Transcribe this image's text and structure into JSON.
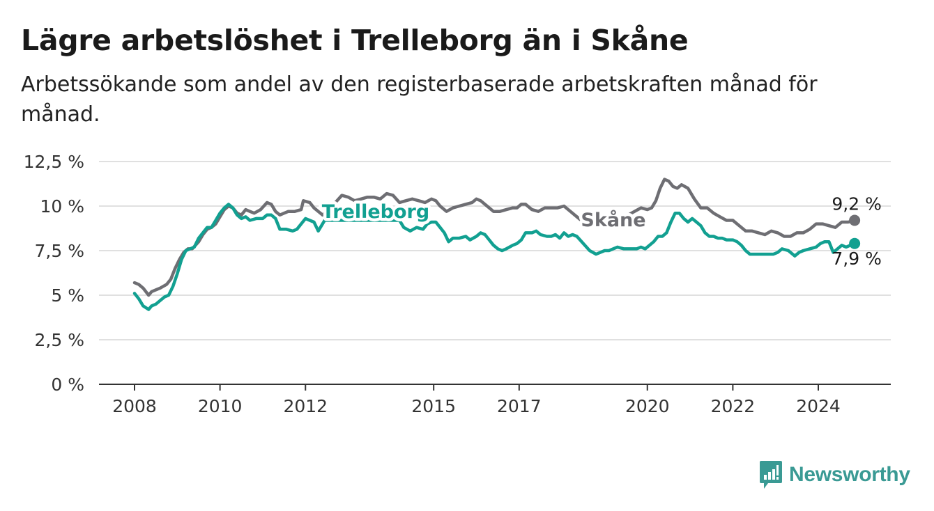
{
  "title": "Lägre arbetslöshet i Trelleborg än i Skåne",
  "subtitle": "Arbetssökande som andel av den registerbaserade arbetskraften månad för månad.",
  "brand": {
    "name": "Newsworthy",
    "color": "#3a9a94"
  },
  "chart_data": {
    "type": "line",
    "grid": true,
    "ylim": [
      0,
      12.5
    ],
    "yticks": [
      {
        "value": 0,
        "label": "0 %"
      },
      {
        "value": 2.5,
        "label": "2,5 %"
      },
      {
        "value": 5,
        "label": "5 %"
      },
      {
        "value": 7.5,
        "label": "7,5 %"
      },
      {
        "value": 10,
        "label": "10 %"
      },
      {
        "value": 12.5,
        "label": "12,5 %"
      }
    ],
    "xlim": [
      2007.5,
      2026.5
    ],
    "xticks": [
      {
        "value": 2008,
        "label": "2008"
      },
      {
        "value": 2010,
        "label": "2010"
      },
      {
        "value": 2012,
        "label": "2012"
      },
      {
        "value": 2015,
        "label": "2015"
      },
      {
        "value": 2017,
        "label": "2017"
      },
      {
        "value": 2020,
        "label": "2020"
      },
      {
        "value": 2022,
        "label": "2022"
      },
      {
        "value": 2024,
        "label": "2024"
      }
    ],
    "series": [
      {
        "name": "Skåne",
        "color": "#6e6e73",
        "end_label": "9,2 %",
        "points": [
          [
            2008.0,
            5.7
          ],
          [
            2008.1,
            5.6
          ],
          [
            2008.2,
            5.4
          ],
          [
            2008.33,
            5.0
          ],
          [
            2008.4,
            5.2
          ],
          [
            2008.5,
            5.3
          ],
          [
            2008.6,
            5.4
          ],
          [
            2008.75,
            5.6
          ],
          [
            2008.85,
            5.9
          ],
          [
            2008.95,
            6.5
          ],
          [
            2009.05,
            7.0
          ],
          [
            2009.15,
            7.4
          ],
          [
            2009.25,
            7.6
          ],
          [
            2009.35,
            7.6
          ],
          [
            2009.5,
            8.0
          ],
          [
            2009.6,
            8.4
          ],
          [
            2009.7,
            8.7
          ],
          [
            2009.8,
            8.8
          ],
          [
            2009.9,
            9.0
          ],
          [
            2010.0,
            9.4
          ],
          [
            2010.1,
            9.8
          ],
          [
            2010.2,
            10.0
          ],
          [
            2010.3,
            9.9
          ],
          [
            2010.4,
            9.6
          ],
          [
            2010.5,
            9.5
          ],
          [
            2010.6,
            9.8
          ],
          [
            2010.7,
            9.7
          ],
          [
            2010.8,
            9.6
          ],
          [
            2010.95,
            9.8
          ],
          [
            2011.1,
            10.2
          ],
          [
            2011.2,
            10.1
          ],
          [
            2011.3,
            9.7
          ],
          [
            2011.4,
            9.5
          ],
          [
            2011.5,
            9.6
          ],
          [
            2011.6,
            9.7
          ],
          [
            2011.75,
            9.7
          ],
          [
            2011.9,
            9.8
          ],
          [
            2011.95,
            10.3
          ],
          [
            2012.1,
            10.2
          ],
          [
            2012.2,
            9.9
          ],
          [
            2012.3,
            9.7
          ],
          [
            2012.4,
            9.5
          ],
          [
            2012.55,
            9.8
          ],
          [
            2012.7,
            10.2
          ],
          [
            2012.85,
            10.6
          ],
          [
            2013.0,
            10.5
          ],
          [
            2013.15,
            10.3
          ],
          [
            2013.3,
            10.4
          ],
          [
            2013.45,
            10.5
          ],
          [
            2013.6,
            10.5
          ],
          [
            2013.75,
            10.4
          ],
          [
            2013.9,
            10.7
          ],
          [
            2014.05,
            10.6
          ],
          [
            2014.2,
            10.2
          ],
          [
            2014.35,
            10.3
          ],
          [
            2014.5,
            10.4
          ],
          [
            2014.65,
            10.3
          ],
          [
            2014.8,
            10.2
          ],
          [
            2014.95,
            10.4
          ],
          [
            2015.05,
            10.3
          ],
          [
            2015.15,
            10.0
          ],
          [
            2015.3,
            9.7
          ],
          [
            2015.45,
            9.9
          ],
          [
            2015.6,
            10.0
          ],
          [
            2015.75,
            10.1
          ],
          [
            2015.9,
            10.2
          ],
          [
            2016.0,
            10.4
          ],
          [
            2016.1,
            10.3
          ],
          [
            2016.25,
            10.0
          ],
          [
            2016.4,
            9.7
          ],
          [
            2016.55,
            9.7
          ],
          [
            2016.7,
            9.8
          ],
          [
            2016.85,
            9.9
          ],
          [
            2016.95,
            9.9
          ],
          [
            2017.05,
            10.1
          ],
          [
            2017.15,
            10.1
          ],
          [
            2017.3,
            9.8
          ],
          [
            2017.45,
            9.7
          ],
          [
            2017.6,
            9.9
          ],
          [
            2017.75,
            9.9
          ],
          [
            2017.9,
            9.9
          ],
          [
            2018.05,
            10.0
          ],
          [
            2018.2,
            9.7
          ],
          [
            2018.35,
            9.4
          ],
          [
            2018.5,
            9.1
          ],
          [
            2018.65,
            9.0
          ],
          [
            2018.8,
            9.1
          ],
          [
            2018.95,
            9.2
          ],
          [
            2019.1,
            9.4
          ],
          [
            2019.25,
            9.4
          ],
          [
            2019.4,
            9.4
          ],
          [
            2019.55,
            9.5
          ],
          [
            2019.7,
            9.7
          ],
          [
            2019.85,
            9.9
          ],
          [
            2020.0,
            9.8
          ],
          [
            2020.1,
            9.9
          ],
          [
            2020.2,
            10.3
          ],
          [
            2020.3,
            11.0
          ],
          [
            2020.4,
            11.5
          ],
          [
            2020.5,
            11.4
          ],
          [
            2020.6,
            11.1
          ],
          [
            2020.7,
            11.0
          ],
          [
            2020.8,
            11.2
          ],
          [
            2020.95,
            11.0
          ],
          [
            2021.1,
            10.4
          ],
          [
            2021.25,
            9.9
          ],
          [
            2021.4,
            9.9
          ],
          [
            2021.55,
            9.6
          ],
          [
            2021.7,
            9.4
          ],
          [
            2021.85,
            9.2
          ],
          [
            2022.0,
            9.2
          ],
          [
            2022.15,
            8.9
          ],
          [
            2022.3,
            8.6
          ],
          [
            2022.45,
            8.6
          ],
          [
            2022.6,
            8.5
          ],
          [
            2022.75,
            8.4
          ],
          [
            2022.9,
            8.6
          ],
          [
            2023.05,
            8.5
          ],
          [
            2023.2,
            8.3
          ],
          [
            2023.35,
            8.3
          ],
          [
            2023.5,
            8.5
          ],
          [
            2023.65,
            8.5
          ],
          [
            2023.8,
            8.7
          ],
          [
            2023.95,
            9.0
          ],
          [
            2024.1,
            9.0
          ],
          [
            2024.25,
            8.9
          ],
          [
            2024.4,
            8.8
          ],
          [
            2024.55,
            9.1
          ],
          [
            2024.7,
            9.1
          ],
          [
            2024.85,
            9.2
          ]
        ]
      },
      {
        "name": "Trelleborg",
        "color": "#12a091",
        "end_label": "7,9 %",
        "points": [
          [
            2008.0,
            5.1
          ],
          [
            2008.1,
            4.8
          ],
          [
            2008.2,
            4.4
          ],
          [
            2008.33,
            4.2
          ],
          [
            2008.4,
            4.4
          ],
          [
            2008.5,
            4.5
          ],
          [
            2008.6,
            4.7
          ],
          [
            2008.7,
            4.9
          ],
          [
            2008.8,
            5.0
          ],
          [
            2008.9,
            5.5
          ],
          [
            2009.0,
            6.2
          ],
          [
            2009.1,
            7.0
          ],
          [
            2009.2,
            7.5
          ],
          [
            2009.3,
            7.6
          ],
          [
            2009.4,
            7.7
          ],
          [
            2009.5,
            8.2
          ],
          [
            2009.6,
            8.5
          ],
          [
            2009.7,
            8.8
          ],
          [
            2009.8,
            8.8
          ],
          [
            2009.9,
            9.2
          ],
          [
            2010.0,
            9.6
          ],
          [
            2010.1,
            9.9
          ],
          [
            2010.2,
            10.1
          ],
          [
            2010.3,
            9.9
          ],
          [
            2010.4,
            9.5
          ],
          [
            2010.5,
            9.3
          ],
          [
            2010.6,
            9.4
          ],
          [
            2010.7,
            9.2
          ],
          [
            2010.85,
            9.3
          ],
          [
            2011.0,
            9.3
          ],
          [
            2011.1,
            9.5
          ],
          [
            2011.2,
            9.5
          ],
          [
            2011.3,
            9.3
          ],
          [
            2011.4,
            8.7
          ],
          [
            2011.55,
            8.7
          ],
          [
            2011.7,
            8.6
          ],
          [
            2011.8,
            8.7
          ],
          [
            2011.9,
            9.0
          ],
          [
            2012.0,
            9.3
          ],
          [
            2012.1,
            9.2
          ],
          [
            2012.2,
            9.1
          ],
          [
            2012.3,
            8.6
          ],
          [
            2012.35,
            8.8
          ],
          [
            2012.45,
            9.2
          ],
          [
            2014.2,
            9.2
          ],
          [
            2014.3,
            8.8
          ],
          [
            2014.45,
            8.6
          ],
          [
            2014.6,
            8.8
          ],
          [
            2014.75,
            8.7
          ],
          [
            2014.85,
            9.0
          ],
          [
            2014.95,
            9.1
          ],
          [
            2015.05,
            9.1
          ],
          [
            2015.15,
            8.8
          ],
          [
            2015.25,
            8.5
          ],
          [
            2015.35,
            8.0
          ],
          [
            2015.45,
            8.2
          ],
          [
            2015.6,
            8.2
          ],
          [
            2015.75,
            8.3
          ],
          [
            2015.85,
            8.1
          ],
          [
            2016.0,
            8.3
          ],
          [
            2016.1,
            8.5
          ],
          [
            2016.2,
            8.4
          ],
          [
            2016.3,
            8.1
          ],
          [
            2016.4,
            7.8
          ],
          [
            2016.5,
            7.6
          ],
          [
            2016.6,
            7.5
          ],
          [
            2016.7,
            7.6
          ],
          [
            2016.85,
            7.8
          ],
          [
            2016.95,
            7.9
          ],
          [
            2017.05,
            8.1
          ],
          [
            2017.15,
            8.5
          ],
          [
            2017.3,
            8.5
          ],
          [
            2017.4,
            8.6
          ],
          [
            2017.5,
            8.4
          ],
          [
            2017.65,
            8.3
          ],
          [
            2017.75,
            8.3
          ],
          [
            2017.85,
            8.4
          ],
          [
            2017.95,
            8.2
          ],
          [
            2018.05,
            8.5
          ],
          [
            2018.15,
            8.3
          ],
          [
            2018.25,
            8.4
          ],
          [
            2018.35,
            8.3
          ],
          [
            2018.5,
            7.9
          ],
          [
            2018.65,
            7.5
          ],
          [
            2018.8,
            7.3
          ],
          [
            2018.9,
            7.4
          ],
          [
            2019.0,
            7.5
          ],
          [
            2019.1,
            7.5
          ],
          [
            2019.2,
            7.6
          ],
          [
            2019.3,
            7.7
          ],
          [
            2019.45,
            7.6
          ],
          [
            2019.6,
            7.6
          ],
          [
            2019.75,
            7.6
          ],
          [
            2019.85,
            7.7
          ],
          [
            2019.95,
            7.6
          ],
          [
            2020.05,
            7.8
          ],
          [
            2020.15,
            8.0
          ],
          [
            2020.25,
            8.3
          ],
          [
            2020.35,
            8.3
          ],
          [
            2020.45,
            8.5
          ],
          [
            2020.55,
            9.1
          ],
          [
            2020.65,
            9.6
          ],
          [
            2020.75,
            9.6
          ],
          [
            2020.85,
            9.3
          ],
          [
            2020.95,
            9.1
          ],
          [
            2021.05,
            9.3
          ],
          [
            2021.15,
            9.1
          ],
          [
            2021.25,
            8.9
          ],
          [
            2021.35,
            8.5
          ],
          [
            2021.45,
            8.3
          ],
          [
            2021.55,
            8.3
          ],
          [
            2021.65,
            8.2
          ],
          [
            2021.75,
            8.2
          ],
          [
            2021.85,
            8.1
          ],
          [
            2022.0,
            8.1
          ],
          [
            2022.1,
            8.0
          ],
          [
            2022.2,
            7.8
          ],
          [
            2022.3,
            7.5
          ],
          [
            2022.4,
            7.3
          ],
          [
            2022.55,
            7.3
          ],
          [
            2022.7,
            7.3
          ],
          [
            2022.85,
            7.3
          ],
          [
            2022.95,
            7.3
          ],
          [
            2023.05,
            7.4
          ],
          [
            2023.15,
            7.6
          ],
          [
            2023.3,
            7.5
          ],
          [
            2023.45,
            7.2
          ],
          [
            2023.55,
            7.4
          ],
          [
            2023.65,
            7.5
          ],
          [
            2023.8,
            7.6
          ],
          [
            2023.95,
            7.7
          ],
          [
            2024.05,
            7.9
          ],
          [
            2024.15,
            8.0
          ],
          [
            2024.25,
            8.0
          ],
          [
            2024.35,
            7.4
          ],
          [
            2024.45,
            7.6
          ],
          [
            2024.55,
            7.8
          ],
          [
            2024.65,
            7.7
          ],
          [
            2024.75,
            7.8
          ],
          [
            2024.85,
            7.9
          ]
        ]
      }
    ]
  }
}
